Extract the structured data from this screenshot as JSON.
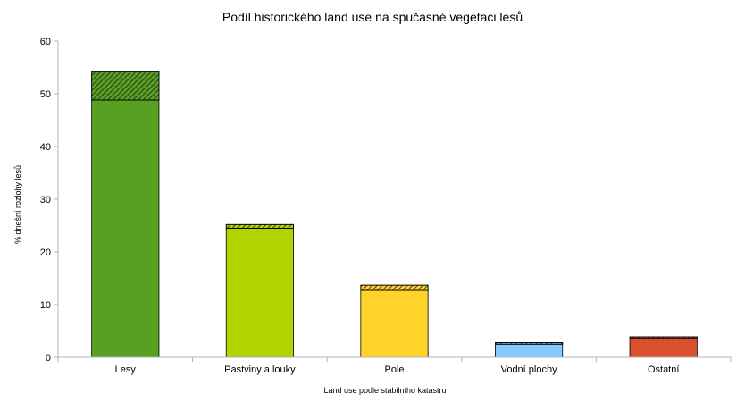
{
  "chart_data": {
    "type": "bar",
    "stacked": true,
    "title": "Podíl historického land use na spučasné vegetaci lesů",
    "xlabel": "Land use podle stabilního katastru",
    "ylabel": "% dnešní rozlohy lesů",
    "categories": [
      "Lesy",
      "Pastviny a louky",
      "Pole",
      "Vodní plochy",
      "Ostatní"
    ],
    "series": [
      {
        "values": [
          48.8,
          24.5,
          12.7,
          2.5,
          3.6
        ],
        "pattern": "solid"
      },
      {
        "values": [
          5.4,
          0.7,
          1.0,
          0.3,
          0.3
        ],
        "pattern": "hatched"
      }
    ],
    "bar_colors": [
      "#58a021",
      "#b2d300",
      "#ffd32a",
      "#83caff",
      "#d9512c"
    ],
    "ylim": [
      0,
      60
    ],
    "yticks": [
      "0",
      "10",
      "20",
      "30",
      "40",
      "50",
      "60"
    ],
    "grid": false,
    "legend": "none"
  }
}
